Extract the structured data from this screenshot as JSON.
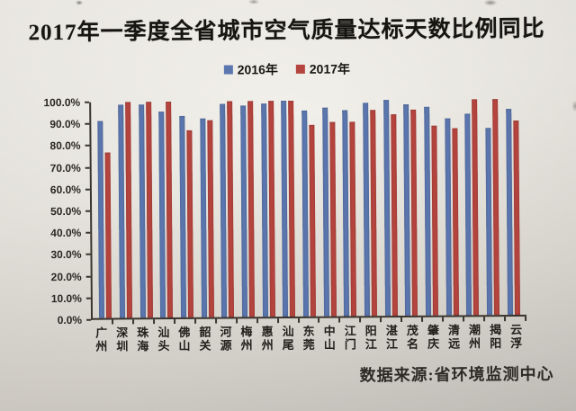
{
  "title": "2017年一季度全省城市空气质量达标天数比例同比",
  "source": "数据来源:省环境监测中心",
  "colors": {
    "bar_2016": "#5b76ae",
    "bar_2017": "#b5443e",
    "paper": "#ebe8e0",
    "ink": "#2a2723"
  },
  "chart_data": {
    "type": "bar",
    "title": "2017年一季度全省城市空气质量达标天数比例同比",
    "categories": [
      "广州",
      "深圳",
      "珠海",
      "汕头",
      "佛山",
      "韶关",
      "河源",
      "梅州",
      "惠州",
      "汕尾",
      "东莞",
      "中山",
      "江门",
      "阳江",
      "湛江",
      "茂名",
      "肇庆",
      "清远",
      "潮州",
      "揭阳",
      "云浮"
    ],
    "series": [
      {
        "name": "2016年",
        "color": "#5b76ae",
        "values": [
          91.1,
          98.9,
          98.9,
          95.6,
          93.3,
          92.2,
          98.9,
          97.8,
          98.9,
          100.0,
          95.6,
          96.7,
          95.6,
          98.9,
          100.0,
          97.8,
          96.7,
          91.1,
          93.3,
          86.7,
          95.6
        ]
      },
      {
        "name": "2017年",
        "color": "#b5443e",
        "values": [
          76.7,
          100.0,
          100.0,
          100.0,
          86.7,
          91.1,
          100.0,
          100.0,
          100.0,
          100.0,
          88.9,
          90.0,
          90.0,
          95.6,
          93.3,
          95.6,
          87.8,
          86.7,
          100.0,
          100.0,
          90.0
        ]
      }
    ],
    "xlabel": "",
    "ylabel": "",
    "ylim": [
      0,
      100
    ],
    "yticks": [
      "0.0%",
      "10.0%",
      "20.0%",
      "30.0%",
      "40.0%",
      "50.0%",
      "60.0%",
      "70.0%",
      "80.0%",
      "90.0%",
      "100.0%"
    ],
    "legend_position": "top",
    "grid": false
  }
}
